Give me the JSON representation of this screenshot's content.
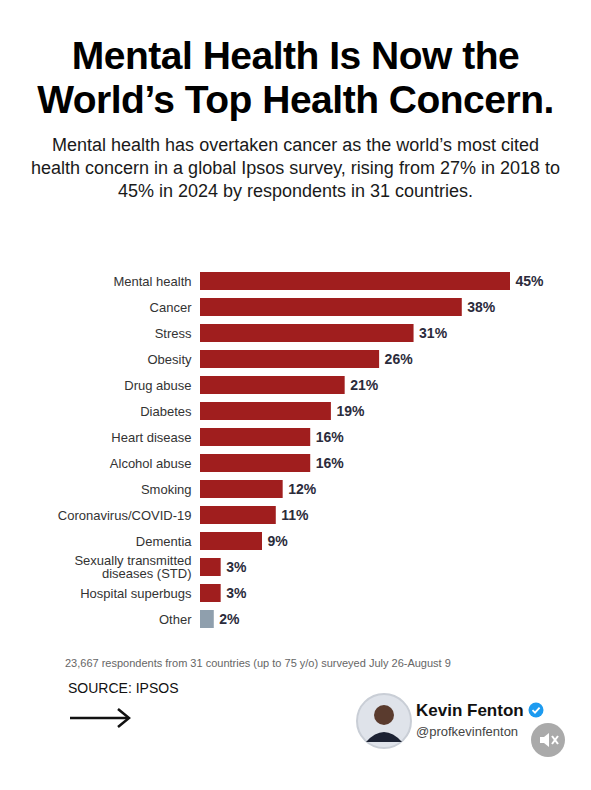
{
  "chart_data": {
    "type": "bar",
    "orientation": "horizontal",
    "title": "Mental Health Is Now the World’s Top Health Concern.",
    "subtitle": "Mental health has overtaken cancer as the world’s most cited health concern in a global Ipsos survey, rising from 27% in 2018 to 45% in 2024 by respondents in 31 countries.",
    "categories": [
      "Mental health",
      "Cancer",
      "Stress",
      "Obesity",
      "Drug abuse",
      "Diabetes",
      "Heart disease",
      "Alcohol abuse",
      "Smoking",
      "Coronavirus/COVID-19",
      "Dementia",
      "Sexually transmitted diseases (STD)",
      "Hospital superbugs",
      "Other"
    ],
    "values": [
      45,
      38,
      31,
      26,
      21,
      19,
      16,
      16,
      12,
      11,
      9,
      3,
      3,
      2
    ],
    "value_labels": [
      "45%",
      "38%",
      "31%",
      "26%",
      "21%",
      "19%",
      "16%",
      "16%",
      "12%",
      "11%",
      "9%",
      "3%",
      "3%",
      "2%"
    ],
    "colors": [
      "#a01e1e",
      "#a01e1e",
      "#a01e1e",
      "#a01e1e",
      "#a01e1e",
      "#a01e1e",
      "#a01e1e",
      "#a01e1e",
      "#a01e1e",
      "#a01e1e",
      "#a01e1e",
      "#a01e1e",
      "#a01e1e",
      "#8f9fad"
    ],
    "xlim": [
      0,
      45
    ],
    "data_labels": true,
    "tick_labels": "y",
    "caption": "23,667 respondents from 31 countries (up to 75 y/o) surveyed July 26-August 9",
    "source": "SOURCE: IPSOS",
    "author": {
      "name": "Kevin Fenton",
      "handle": "@profkevinfenton"
    }
  }
}
